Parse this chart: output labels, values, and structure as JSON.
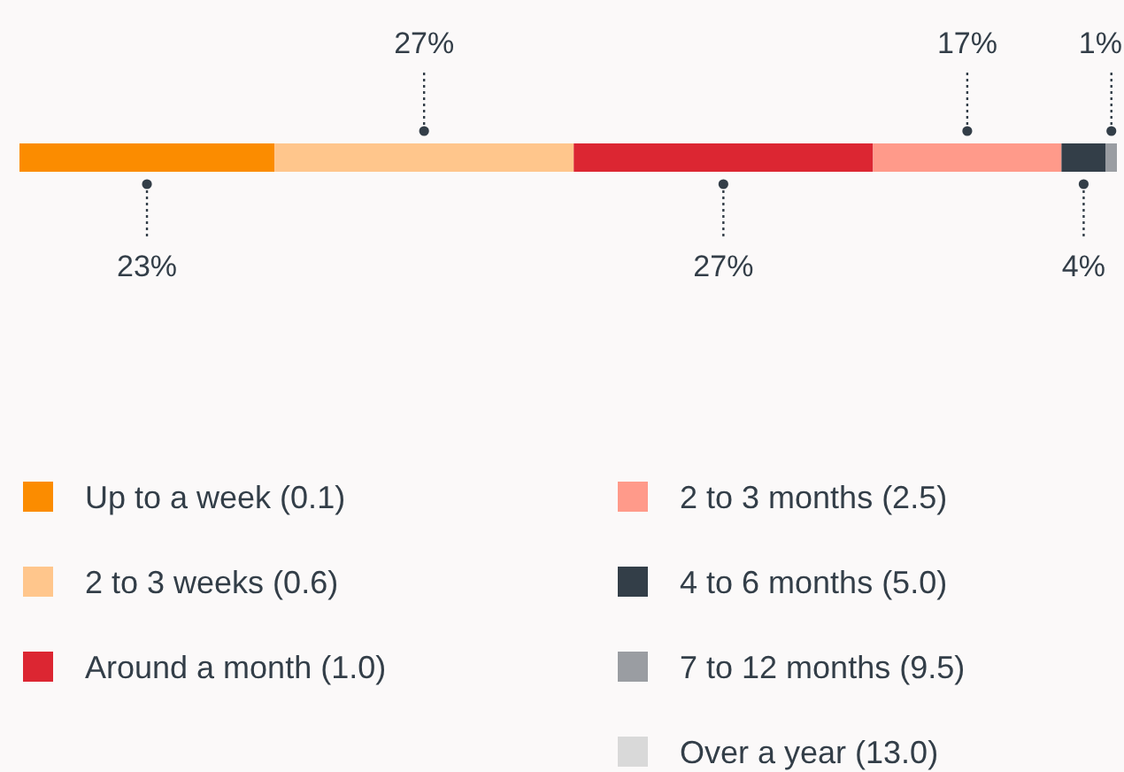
{
  "chart_data": {
    "type": "bar",
    "orientation": "horizontal",
    "stacked": true,
    "categories": [
      null
    ],
    "legend": "bottom",
    "series": [
      {
        "name": "Up to a week (0.1)",
        "color": "#fb8c00",
        "values": [
          23
        ],
        "value_labels": [
          "23%"
        ]
      },
      {
        "name": "2 to 3 weeks (0.6)",
        "color": "#ffc68c",
        "values": [
          27
        ],
        "value_labels": [
          "27%"
        ]
      },
      {
        "name": "Around a month (1.0)",
        "color": "#dc2632",
        "values": [
          27
        ],
        "value_labels": [
          "27%"
        ]
      },
      {
        "name": "2 to 3 months (2.5)",
        "color": "#ff9a8a",
        "values": [
          17
        ],
        "value_labels": [
          "17%"
        ]
      },
      {
        "name": "4 to 6 months (5.0)",
        "color": "#333e48",
        "values": [
          4
        ],
        "value_labels": [
          "4%"
        ]
      },
      {
        "name": "7 to 12 months (9.5)",
        "color": "#9a9da2",
        "values": [
          1
        ],
        "value_labels": [
          "1%"
        ]
      },
      {
        "name": "Over a year (13.0)",
        "color": "#d9d9d9",
        "values": [
          0
        ],
        "value_labels": [
          null
        ]
      }
    ]
  }
}
